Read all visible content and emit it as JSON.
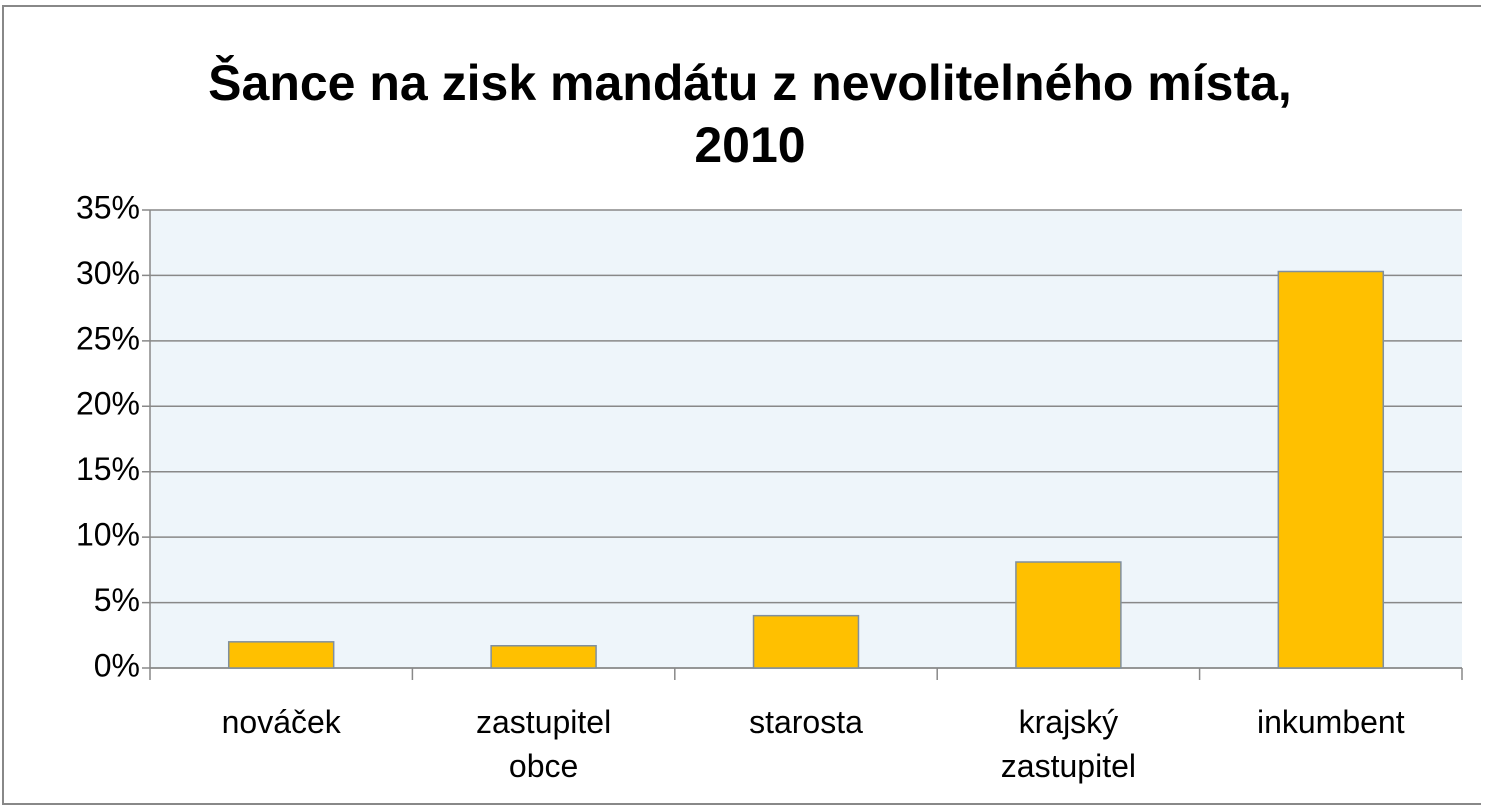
{
  "chart_data": {
    "type": "bar",
    "title": "Šance na zisk mandátu z nevolitelného místa, 2010",
    "categories": [
      "nováček",
      "zastupitel obce",
      "starosta",
      "krajský zastupitel",
      "inkumbent"
    ],
    "values": [
      2.0,
      1.7,
      4.0,
      8.1,
      30.3
    ],
    "color": "#ffc000",
    "ylim": [
      0,
      35
    ],
    "yticks": [
      {
        "value": 0,
        "label": "0%"
      },
      {
        "value": 5,
        "label": "5%"
      },
      {
        "value": 10,
        "label": "10%"
      },
      {
        "value": 15,
        "label": "15%"
      },
      {
        "value": 20,
        "label": "20%"
      },
      {
        "value": 25,
        "label": "25%"
      },
      {
        "value": 30,
        "label": "30%"
      },
      {
        "value": 35,
        "label": "35%"
      }
    ],
    "grid": true
  }
}
